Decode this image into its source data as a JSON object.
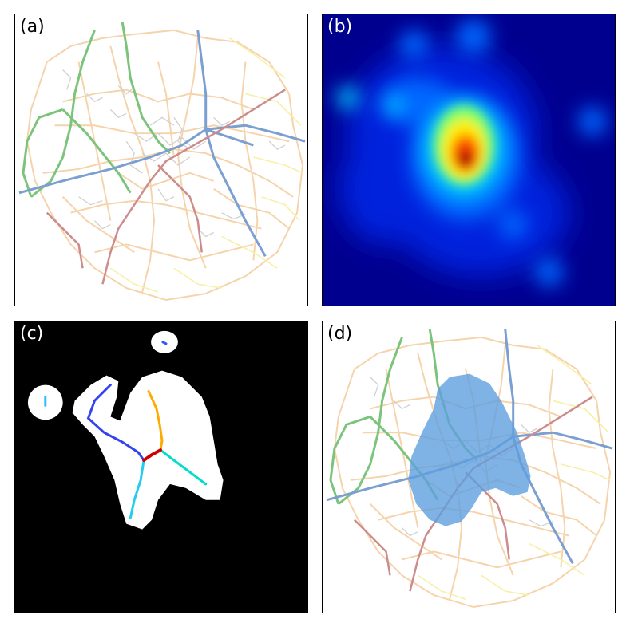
{
  "panels": {
    "a": {
      "label": "(a)",
      "label_color": "#000000",
      "background": "#ffffff"
    },
    "b": {
      "label": "(b)",
      "label_color": "#ffffff",
      "background": "#00007f"
    },
    "c": {
      "label": "(c)",
      "label_color": "#ffffff",
      "background": "#000000"
    },
    "d": {
      "label": "(d)",
      "label_color": "#000000",
      "background": "#ffffff"
    }
  },
  "colors": {
    "minor_roads": "#f5cfa3",
    "secondary_roads": "#f7f0a8",
    "grey_detail": "#d0d0d0",
    "route_green": "#7cc47c",
    "route_blue": "#7a9fd0",
    "route_red": "#cc8c8c",
    "area_fill": "#5f9fdf",
    "mask_white": "#ffffff"
  }
}
